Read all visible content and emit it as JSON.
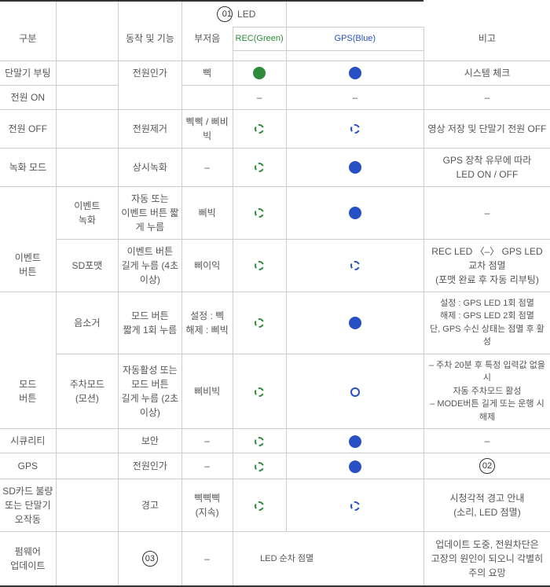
{
  "header": {
    "category": "구분",
    "action": "동작 및 기능",
    "buzzer": "부저음",
    "led": {
      "title": "LED",
      "rec": "REC(Green)",
      "gps": "GPS(Blue)"
    },
    "remark": "비고",
    "badge01": "01"
  },
  "rows": {
    "boot": {
      "cat": "단말기 부팅",
      "action": "전원인가",
      "buzzer": "삑",
      "led_rec": "solid-g",
      "led_gps": "solid-b",
      "remark": "시스템 체크"
    },
    "powerOn": {
      "cat": "전원 ON",
      "buzzer": "",
      "led_rec_text": "–",
      "led_gps_text": "–",
      "remark": "–"
    },
    "powerOff": {
      "cat": "전원 OFF",
      "action": "전원제거",
      "buzzer": "삑삑 / 삐비빅",
      "led_rec": "dash-g",
      "led_gps": "dash-b",
      "remark": "영상 저장 및 단말기 전원 OFF"
    },
    "recMode": {
      "cat": "녹화 모드",
      "action": "상시녹화",
      "buzzer": "–",
      "led_rec": "dash-g",
      "led_gps": "solid-b",
      "remark": "GPS 장착 유무에 따라\nLED ON / OFF"
    },
    "eventBtn": {
      "group": "이벤트\n버튼",
      "eventRec": {
        "cat": "이벤트\n녹화",
        "action": "자동 또는\n이벤트 버튼 짧게 누름",
        "buzzer": "삐빅",
        "led_rec": "dash-g",
        "led_gps": "solid-b",
        "remark": "–"
      },
      "sdFormat": {
        "cat": "SD포맷",
        "action": "이벤트 버튼\n길게 누름 (4초 이상)",
        "buzzer": "삐이익",
        "led_rec": "dash-g",
        "led_gps": "dash-b",
        "remark": "REC LED 〈–〉 GPS LED 교차 점멸\n(포맷 완료 후 자동 리부팅)"
      }
    },
    "modeBtn": {
      "group": "모드\n버튼",
      "mute": {
        "cat": "음소거",
        "action": "모드 버튼\n짧게 1회 누름",
        "buzzer": "설정 : 삑\n해제 : 삐빅",
        "led_rec": "dash-g",
        "led_gps": "solid-b",
        "remark": "설정 :  GPS LED 1회 점멸\n해제 : GPS LED 2회 점멸\n단, GPS 수신 상태는 점멸 후 활성"
      },
      "parking": {
        "cat": "주차모드\n(모션)",
        "action": "자동활성 또는\n모드 버튼\n길게 누름 (2초 이상)",
        "buzzer": "삐비빅",
        "led_rec": "dash-g",
        "led_gps": "ring-b",
        "remark": "– 주차 20분 후 특정 입력값 없을시\n자동 주차모드 활성\n– MODE버튼 길게 또는 운행 시 해제"
      }
    },
    "security": {
      "cat": "시큐리티",
      "action": "보안",
      "buzzer": "–",
      "led_rec": "dash-g",
      "led_gps": "solid-b",
      "remark": "–"
    },
    "gps": {
      "cat": "GPS",
      "action": "전원인가",
      "buzzer": "–",
      "led_rec": "dash-g",
      "led_gps": "solid-b",
      "remark_badge": "02"
    },
    "sdFault": {
      "cat": "SD카드 불량\n또는 단말기\n오작동",
      "action": "경고",
      "buzzer": "삑삑삑\n(지속)",
      "led_rec": "dash-g",
      "led_gps": "dash-b",
      "remark": "시청각적 경고 안내\n(소리, LED 점멸)"
    },
    "firmware": {
      "cat": "펌웨어\n업데이트",
      "action_badge": "03",
      "buzzer": "–",
      "led_text": "LED 순차 점멸",
      "remark": "업데이트 도중, 전원차단은\n고장의 원인이 되오니 각별히\n주의 요망"
    }
  }
}
